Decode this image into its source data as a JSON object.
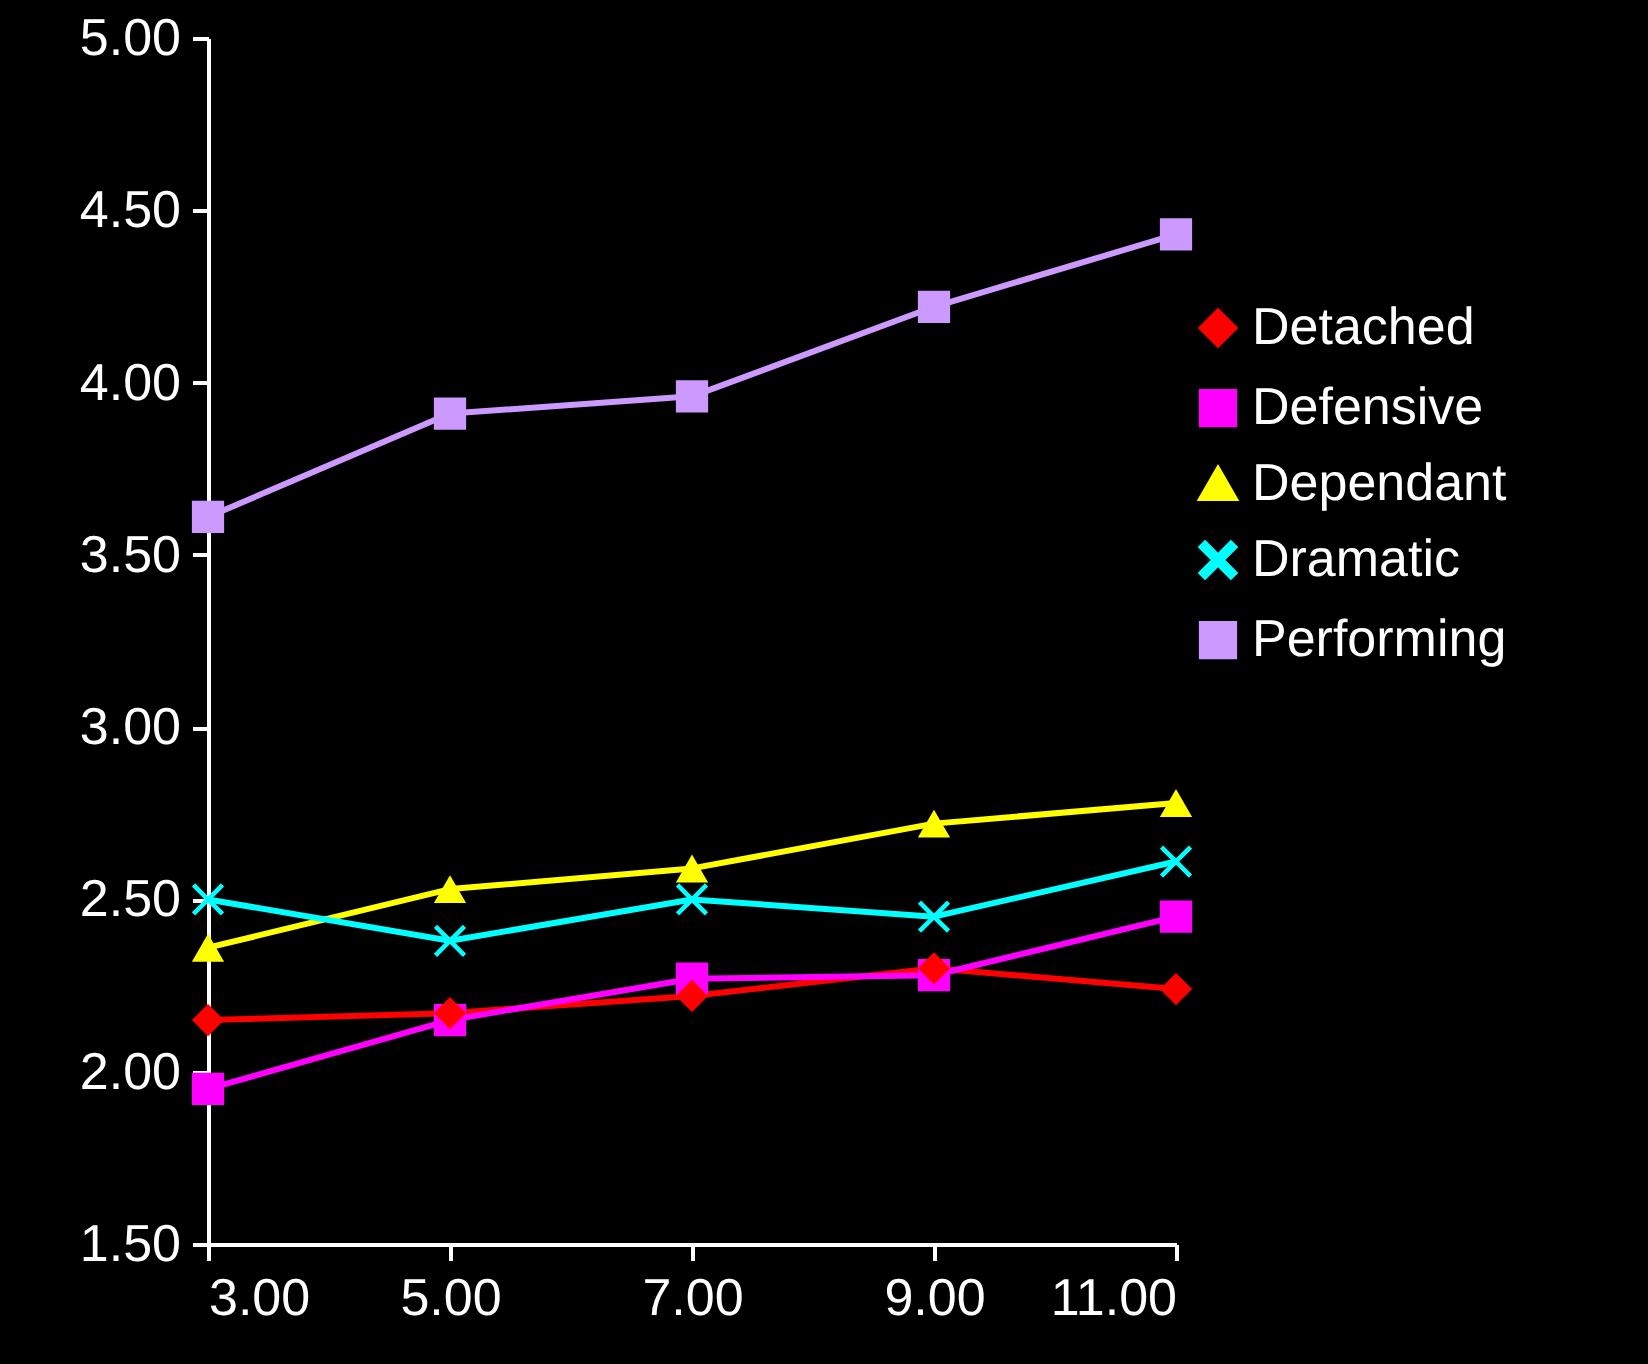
{
  "chart_data": {
    "type": "line",
    "x": [
      3,
      5,
      7,
      9,
      11
    ],
    "series": [
      {
        "name": "Detached",
        "color": "#ff0000",
        "marker": "diamond",
        "values": [
          2.15,
          2.17,
          2.22,
          2.3,
          2.24
        ]
      },
      {
        "name": "Defensive",
        "color": "#ff00ff",
        "marker": "square",
        "values": [
          1.95,
          2.15,
          2.27,
          2.28,
          2.45
        ]
      },
      {
        "name": "Dependant",
        "color": "#ffff00",
        "marker": "triangle",
        "values": [
          2.36,
          2.53,
          2.59,
          2.72,
          2.78
        ]
      },
      {
        "name": "Dramatic",
        "color": "#00ffff",
        "marker": "cross",
        "values": [
          2.5,
          2.38,
          2.5,
          2.45,
          2.61
        ]
      },
      {
        "name": "Performing",
        "color": "#cc99ff",
        "marker": "square",
        "values": [
          3.61,
          3.91,
          3.96,
          4.22,
          4.43
        ]
      }
    ],
    "xlim": [
      3,
      11
    ],
    "xticks": [
      {
        "value": 3,
        "label": "3.00"
      },
      {
        "value": 5,
        "label": "5.00"
      },
      {
        "value": 7,
        "label": "7.00"
      },
      {
        "value": 9,
        "label": "9.00"
      },
      {
        "value": 11,
        "label": "11.00"
      }
    ],
    "ylim": [
      1.5,
      5
    ],
    "yticks": [
      {
        "value": 1.5,
        "label": "1.50"
      },
      {
        "value": 2,
        "label": "2.00"
      },
      {
        "value": 2.5,
        "label": "2.50"
      },
      {
        "value": 3,
        "label": "3.00"
      },
      {
        "value": 3.5,
        "label": "3.50"
      },
      {
        "value": 4,
        "label": "4.00"
      },
      {
        "value": 4.5,
        "label": "4.50"
      },
      {
        "value": 5,
        "label": "5.00"
      }
    ],
    "grid": false,
    "legend": "right",
    "line_style": "solid"
  }
}
